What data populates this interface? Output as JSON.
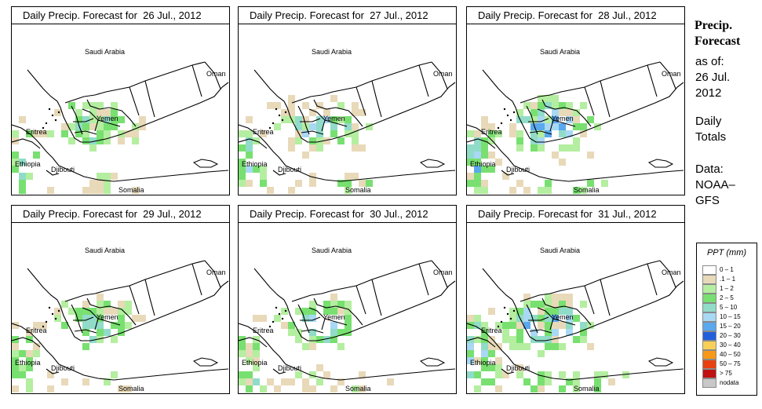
{
  "panels": [
    {
      "title": "Daily Precip. Forecast for  26 Jul., 2012",
      "seed": 11,
      "intensity": 1.0
    },
    {
      "title": "Daily Precip. Forecast for  27 Jul., 2012",
      "seed": 23,
      "intensity": 1.1
    },
    {
      "title": "Daily Precip. Forecast for  28 Jul., 2012",
      "seed": 37,
      "intensity": 1.35
    },
    {
      "title": "Daily Precip. Forecast for  29 Jul., 2012",
      "seed": 51,
      "intensity": 0.9
    },
    {
      "title": "Daily Precip. Forecast for  30 Jul., 2012",
      "seed": 67,
      "intensity": 1.0
    },
    {
      "title": "Daily Precip. Forecast for  31 Jul., 2012",
      "seed": 83,
      "intensity": 1.5
    }
  ],
  "map_labels": {
    "saudi_arabia": "Saudi Arabia",
    "oman": "Oman",
    "yemen": "Yemen",
    "eritrea": "Eritrea",
    "ethiopia": "Ethiopia",
    "djibouti": "Djibouti",
    "somalia": "Somalia"
  },
  "side": {
    "title_line1": "Precip.",
    "title_line2": "Forecast",
    "asof_line1": "as of:",
    "asof_line2": "26 Jul.",
    "asof_line3": "2012",
    "daily_line1": "Daily",
    "daily_line2": "Totals",
    "data_line1": "Data:",
    "data_line2": "NOAA–",
    "data_line3": "GFS"
  },
  "legend": {
    "title": "PPT (mm)",
    "entries": [
      {
        "label": "0 – 1",
        "color": "#ffffff"
      },
      {
        "label": ".1 – 1",
        "color": "#e8d9b9"
      },
      {
        "label": "1 – 2",
        "color": "#b4eea0"
      },
      {
        "label": "2 – 5",
        "color": "#78e070"
      },
      {
        "label": "5 – 10",
        "color": "#90dcc8"
      },
      {
        "label": "10 – 15",
        "color": "#a8d8f4"
      },
      {
        "label": "15 – 20",
        "color": "#5aa8ee"
      },
      {
        "label": "20 – 30",
        "color": "#2060dc"
      },
      {
        "label": "30 – 40",
        "color": "#f8d058"
      },
      {
        "label": "40 – 50",
        "color": "#f89818"
      },
      {
        "label": "50 – 75",
        "color": "#e84010"
      },
      {
        "label": "> 75",
        "color": "#c01010"
      },
      {
        "label": "nodata",
        "color": "#c8c8c8"
      }
    ]
  }
}
